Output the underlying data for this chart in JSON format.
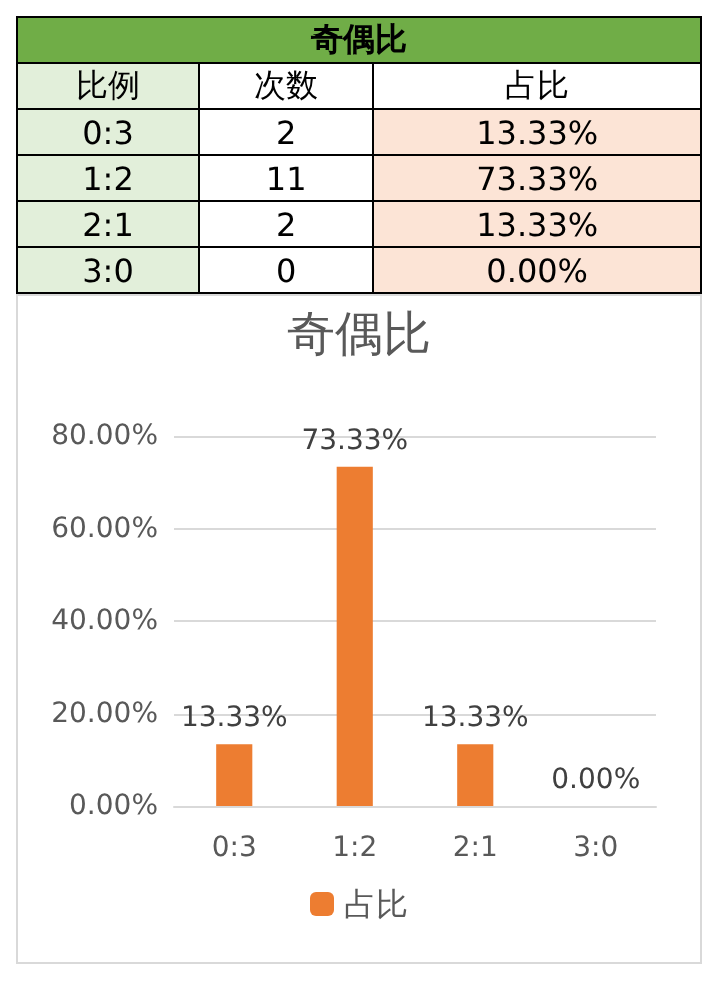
{
  "chart_data": [
    {
      "type": "other",
      "title": "奇偶比",
      "xlabel": "比例",
      "categories": [
        "0:3",
        "1:2",
        "2:1",
        "3:0"
      ],
      "data_labels": true,
      "series": [
        {
          "name": "次数",
          "values": [
            2,
            11,
            2,
            0
          ]
        },
        {
          "name": "占比",
          "color": "#fce4d6",
          "values": [
            13.33,
            73.33,
            13.33,
            0
          ],
          "value_labels": [
            "13.33%",
            "73.33%",
            "13.33%",
            "0.00%"
          ]
        }
      ]
    },
    {
      "type": "bar",
      "title": "奇偶比",
      "categories": [
        "0:3",
        "1:2",
        "2:1",
        "3:0"
      ],
      "series": [
        {
          "name": "占比",
          "color": "#ed7d31",
          "values": [
            13.33,
            73.33,
            13.33,
            0
          ],
          "value_labels": [
            "13.33%",
            "73.33%",
            "13.33%",
            "0.00%"
          ]
        }
      ],
      "ylim": [
        0,
        80
      ],
      "yticks": [
        {
          "value": 0,
          "label": "0.00%"
        },
        {
          "value": 20,
          "label": "20.00%"
        },
        {
          "value": 40,
          "label": "40.00%"
        },
        {
          "value": 60,
          "label": "60.00%"
        },
        {
          "value": 80,
          "label": "80.00%"
        }
      ],
      "grid": "y",
      "legend": "bottom"
    }
  ]
}
